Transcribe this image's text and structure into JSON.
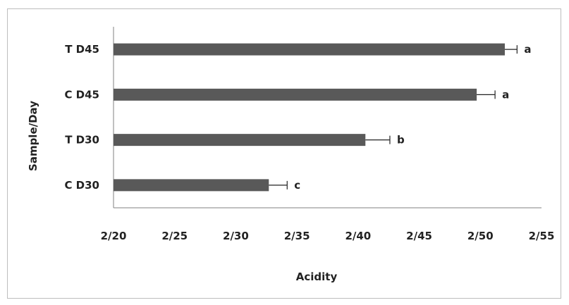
{
  "chart_data": {
    "type": "bar",
    "orientation": "horizontal",
    "title": "",
    "xlabel": "Acidity",
    "ylabel": "Sample/Day",
    "categories": [
      "C D30",
      "T D30",
      "C D45",
      "T D45"
    ],
    "values": [
      0.327,
      0.406,
      0.497,
      0.52
    ],
    "error": [
      0.015,
      0.02,
      0.015,
      0.01
    ],
    "significance_labels": [
      "c",
      "b",
      "a",
      "a"
    ],
    "xlim": [
      0.2,
      0.55
    ],
    "x_ticks": [
      0.2,
      0.25,
      0.3,
      0.35,
      0.4,
      0.45,
      0.5,
      0.55
    ],
    "x_tick_labels": [
      "2/20",
      "2/25",
      "2/30",
      "2/35",
      "2/40",
      "2/45",
      "2/50",
      "2/55"
    ],
    "grid": false,
    "legend": "none",
    "colors": {
      "bar": "#595959",
      "axis": "#808080",
      "text": "#222222",
      "error_bar": "#222222"
    }
  }
}
